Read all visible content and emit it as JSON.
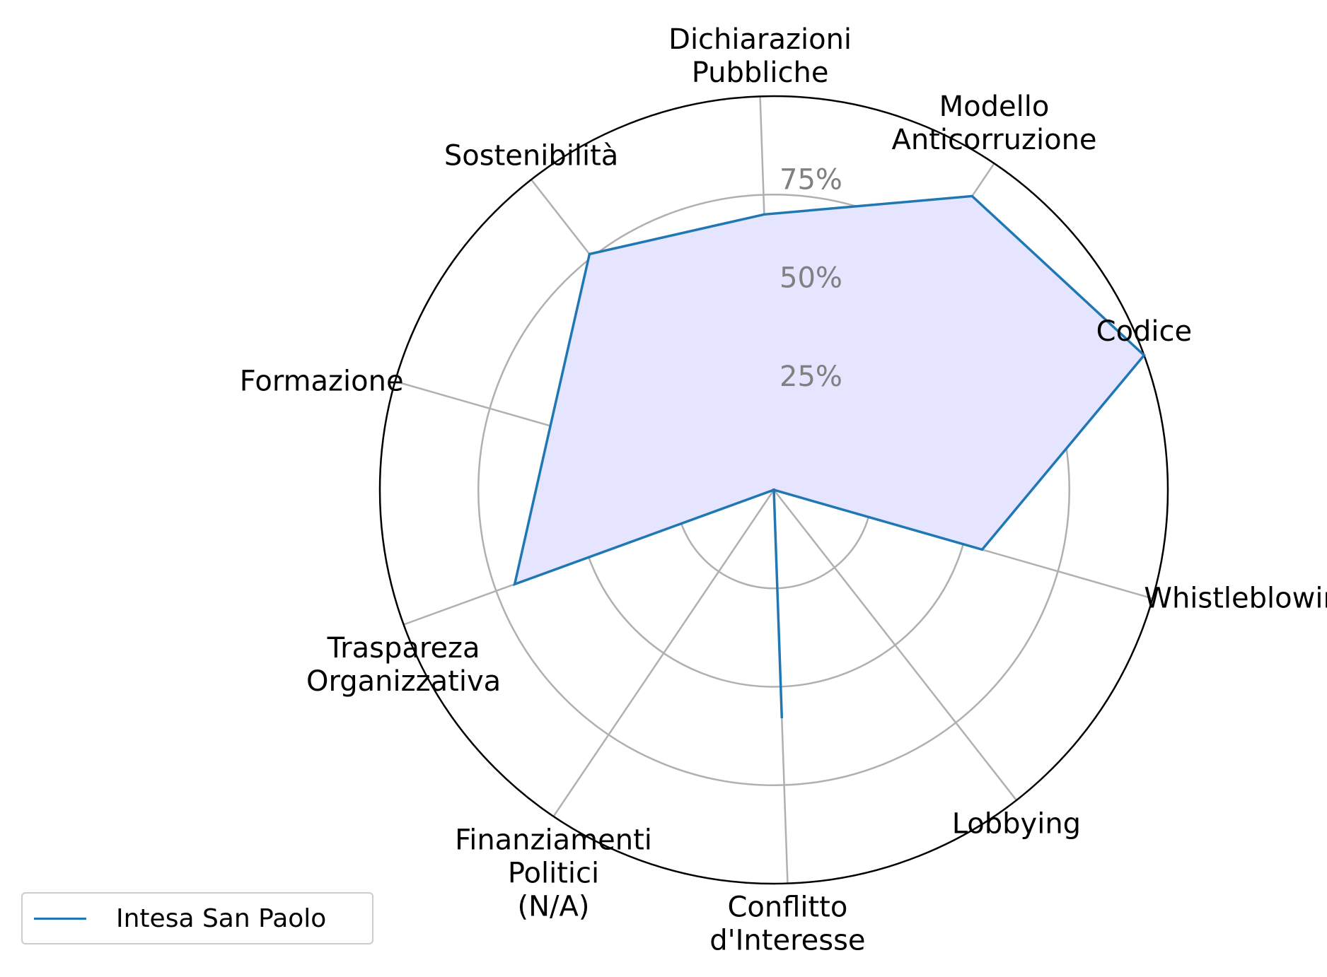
{
  "chart_data": {
    "type": "radar",
    "categories": [
      [
        "Codice"
      ],
      [
        "Modello",
        "Anticorruzione"
      ],
      [
        "Dichiarazioni",
        "Pubbliche"
      ],
      [
        "Sostenibilità"
      ],
      [
        "Formazione"
      ],
      [
        "Traspareza",
        "Organizzativa"
      ],
      [
        "Finanziamenti",
        "Politici",
        "(N/A)"
      ],
      [
        "Conflitto",
        "d'Interesse"
      ],
      [
        "Lobbying"
      ],
      [
        "Whistleblowing"
      ]
    ],
    "series": [
      {
        "name": "Intesa San Paolo",
        "values": [
          100,
          90,
          70,
          76,
          59,
          70,
          0,
          58,
          0,
          55
        ],
        "line_color": "#1f77b4",
        "fill_color": "#e5e5ff"
      }
    ],
    "rlim": [
      0,
      100
    ],
    "rticks": [
      25,
      50,
      75
    ],
    "rtick_labels": [
      "25%",
      "50%",
      "75%"
    ],
    "grid": true,
    "legend_position": "bottom-left"
  }
}
